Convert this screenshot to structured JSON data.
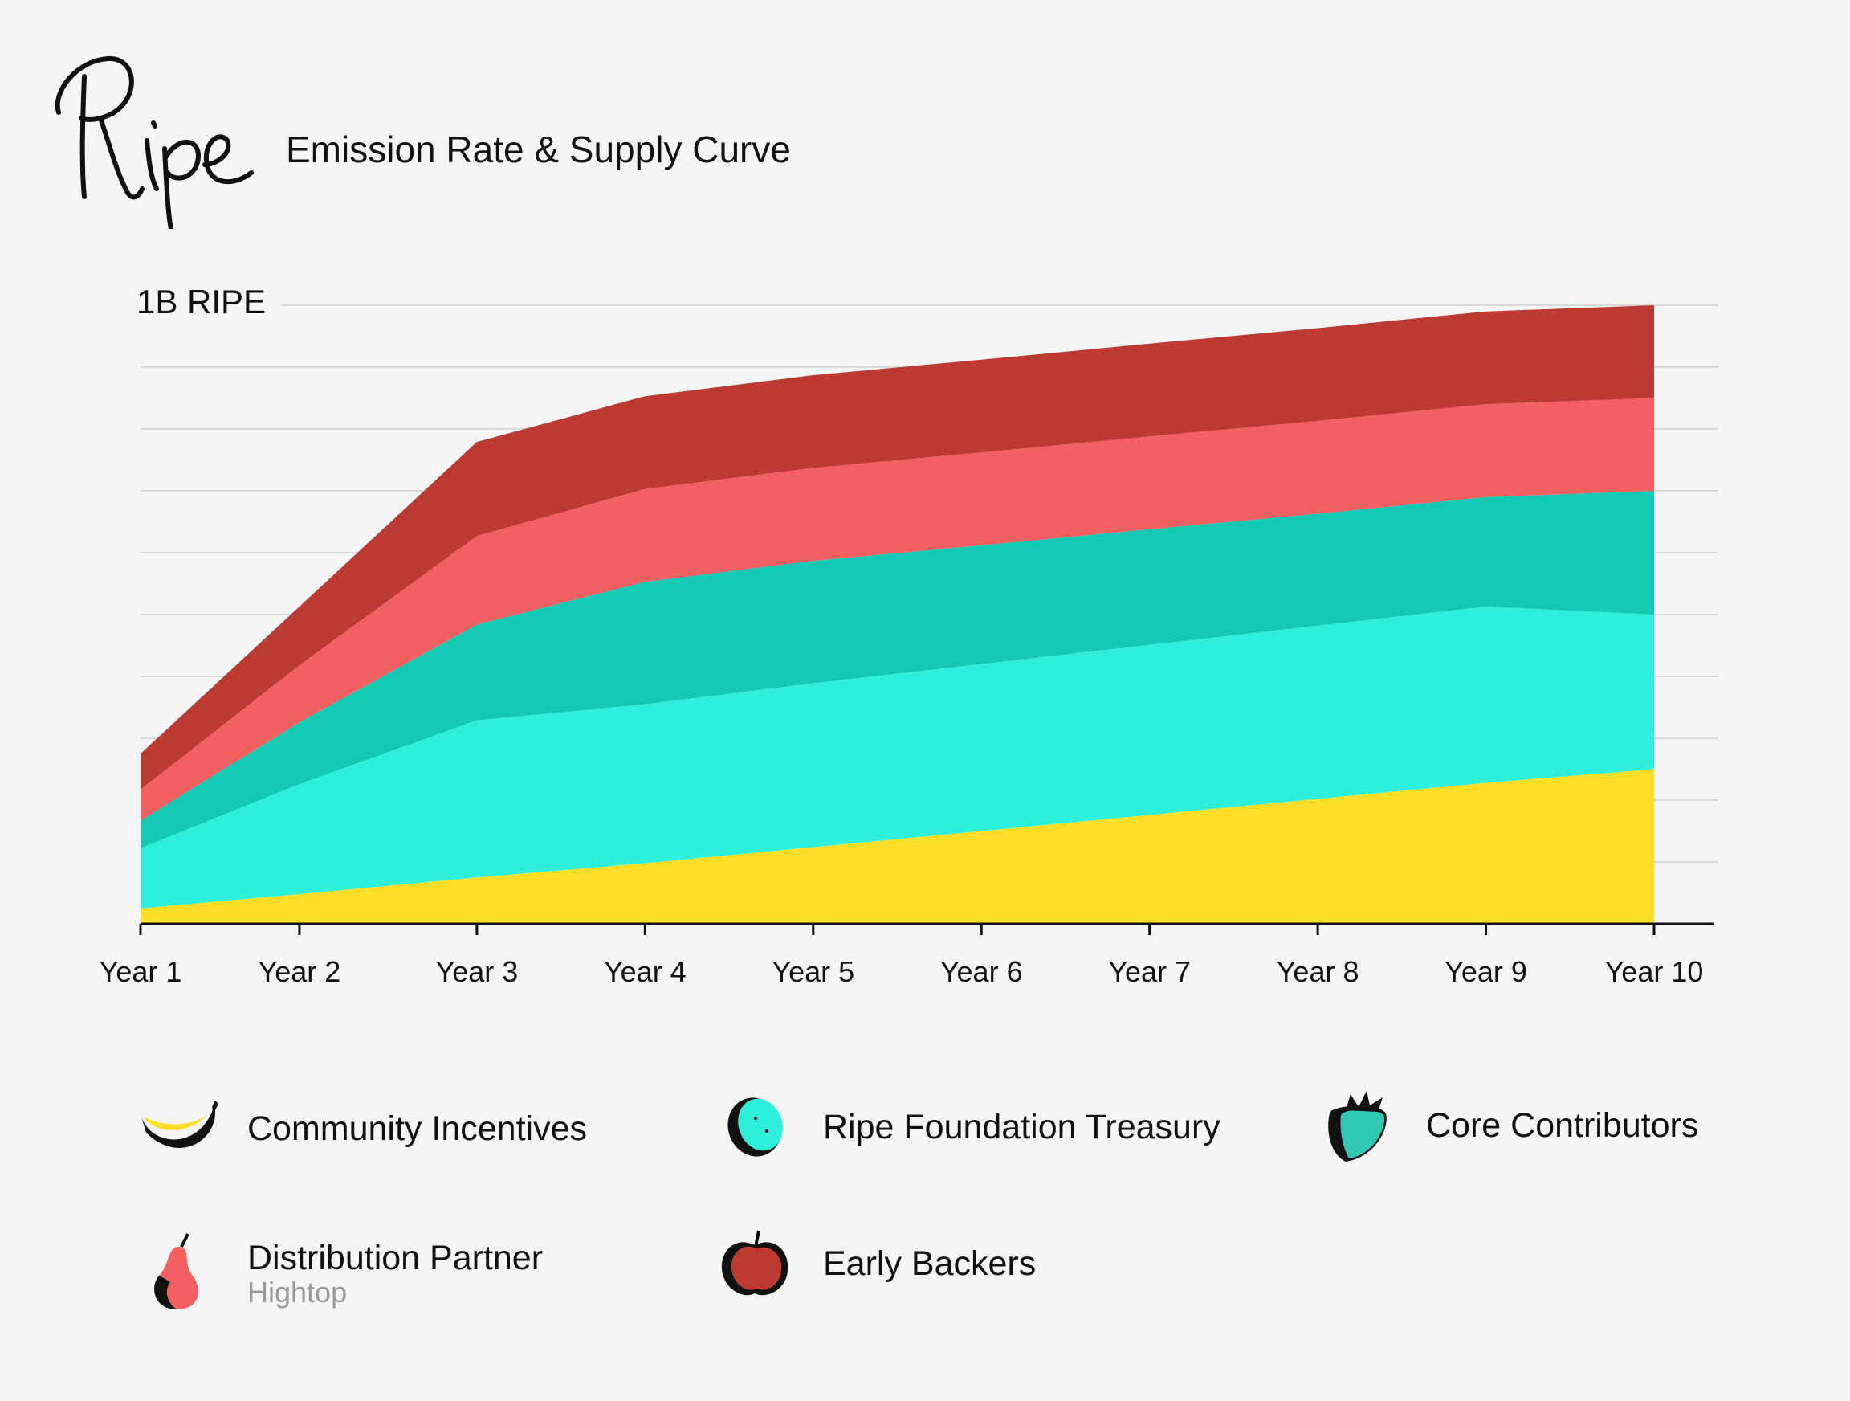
{
  "brand": {
    "logo_text": "Ripe"
  },
  "header": {
    "title": "Emission Rate & Supply Curve"
  },
  "chart_data": {
    "type": "area",
    "stacked": true,
    "title": "Emission Rate & Supply Curve",
    "y_max_label": "1B RIPE",
    "ylim": [
      0,
      1000
    ],
    "y_unit": "million RIPE",
    "gridlines": 10,
    "categories": [
      "Year 1",
      "Year 2",
      "Year 3",
      "Year 4",
      "Year 5",
      "Year 6",
      "Year 7",
      "Year 8",
      "Year 9",
      "Year 10"
    ],
    "x": [
      1,
      1.945,
      3,
      4,
      5,
      6,
      7,
      8,
      9,
      10
    ],
    "series": [
      {
        "name": "Community Incentives",
        "color": "#ffdf26",
        "values": [
          25,
          48,
          75,
          98,
          124,
          150,
          176,
          202,
          228,
          250
        ]
      },
      {
        "name": "Ripe Foundation Treasury",
        "color": "#2ef0da",
        "values": [
          97,
          178,
          254,
          257,
          265,
          270,
          275,
          280,
          285,
          250
        ]
      },
      {
        "name": "Core Contributors",
        "color": "#12c9b3",
        "values": [
          45,
          100,
          155,
          198,
          198,
          192,
          187,
          181,
          177,
          200
        ]
      },
      {
        "name": "Distribution Partner",
        "color": "#f45f5f",
        "values": [
          50,
          92,
          143,
          150,
          150,
          150,
          150,
          150,
          150,
          150
        ]
      },
      {
        "name": "Early Backers",
        "color": "#bd3a33",
        "values": [
          58,
          95,
          152,
          150,
          150,
          150,
          150,
          150,
          150,
          150
        ]
      }
    ]
  },
  "legend": [
    {
      "label": "Community Incentives",
      "sub": "",
      "icon": "banana-icon",
      "color": "#ffdf26"
    },
    {
      "label": "Ripe Foundation Treasury",
      "sub": "",
      "icon": "lime-icon",
      "color": "#2ef0da"
    },
    {
      "label": "Core Contributors",
      "sub": "",
      "icon": "strawberry-icon",
      "color": "#12c9b3"
    },
    {
      "label": "Distribution Partner",
      "sub": "Hightop",
      "icon": "pear-icon",
      "color": "#f45f5f"
    },
    {
      "label": "Early Backers",
      "sub": "",
      "icon": "apple-icon",
      "color": "#bd3a33"
    }
  ]
}
